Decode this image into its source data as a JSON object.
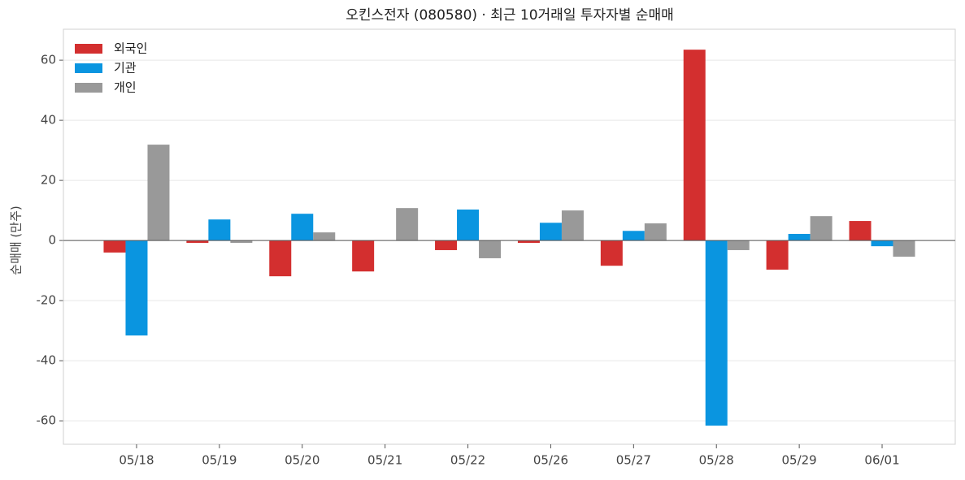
{
  "chart_data": {
    "type": "bar",
    "title": "오킨스전자 (080580) · 최근 10거래일 투자자별 순매매",
    "y_label": "순매매 (만주)",
    "categories": [
      "05/18",
      "05/19",
      "05/20",
      "05/21",
      "05/22",
      "05/26",
      "05/27",
      "05/28",
      "05/29",
      "06/01"
    ],
    "series": [
      {
        "name": "외국인",
        "color": "#d32f2f",
        "values": [
          -4.0,
          -0.8,
          -11.9,
          -10.3,
          -3.2,
          -0.8,
          -8.4,
          63.5,
          -9.7,
          6.5
        ]
      },
      {
        "name": "기관",
        "color": "#0a95e0",
        "values": [
          -31.6,
          7.0,
          8.9,
          0,
          10.3,
          5.9,
          3.2,
          -61.6,
          2.2,
          -1.9
        ]
      },
      {
        "name": "개인",
        "color": "#999999",
        "values": [
          31.9,
          -0.8,
          2.7,
          10.8,
          -5.9,
          10.0,
          5.7,
          -3.2,
          8.1,
          -5.4
        ]
      }
    ],
    "ylim": [
      -67.8,
      70.3
    ],
    "yticks": [
      -60,
      -40,
      -20,
      0,
      20,
      40,
      60
    ],
    "grid": true,
    "legend": "upper left"
  }
}
